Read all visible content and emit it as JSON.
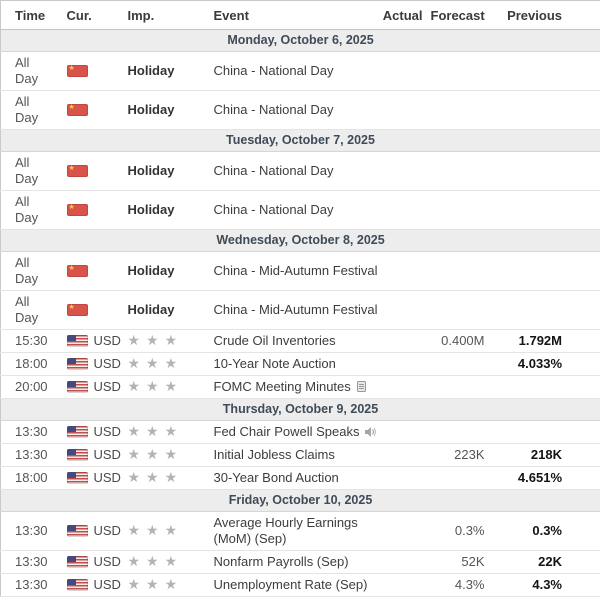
{
  "colors": {
    "day_header_bg": "#ededed",
    "day_header_text": "#3f4b57",
    "row_border": "#e4e4e4",
    "star_color": "#b3b3b3",
    "flag_cn_red": "#d9534a",
    "flag_us_blue": "#454a7d"
  },
  "table": {
    "columns": [
      {
        "key": "time",
        "label": "Time"
      },
      {
        "key": "cur",
        "label": "Cur."
      },
      {
        "key": "imp",
        "label": "Imp."
      },
      {
        "key": "event",
        "label": "Event"
      },
      {
        "key": "actual",
        "label": "Actual"
      },
      {
        "key": "forecast",
        "label": "Forecast"
      },
      {
        "key": "previous",
        "label": "Previous"
      }
    ],
    "sections": [
      {
        "date": "Monday, October 6, 2025",
        "rows": [
          {
            "time": "All Day",
            "flag": "cn",
            "currency": "",
            "importance_label": "Holiday",
            "stars": 0,
            "event": "China - National Day",
            "event_icon": null,
            "actual": "",
            "forecast": "",
            "previous": ""
          },
          {
            "time": "All Day",
            "flag": "cn",
            "currency": "",
            "importance_label": "Holiday",
            "stars": 0,
            "event": "China - National Day",
            "event_icon": null,
            "actual": "",
            "forecast": "",
            "previous": ""
          }
        ]
      },
      {
        "date": "Tuesday, October 7, 2025",
        "rows": [
          {
            "time": "All Day",
            "flag": "cn",
            "currency": "",
            "importance_label": "Holiday",
            "stars": 0,
            "event": "China - National Day",
            "event_icon": null,
            "actual": "",
            "forecast": "",
            "previous": ""
          },
          {
            "time": "All Day",
            "flag": "cn",
            "currency": "",
            "importance_label": "Holiday",
            "stars": 0,
            "event": "China - National Day",
            "event_icon": null,
            "actual": "",
            "forecast": "",
            "previous": ""
          }
        ]
      },
      {
        "date": "Wednesday, October 8, 2025",
        "rows": [
          {
            "time": "All Day",
            "flag": "cn",
            "currency": "",
            "importance_label": "Holiday",
            "stars": 0,
            "event": "China - Mid-Autumn Festival",
            "event_icon": null,
            "actual": "",
            "forecast": "",
            "previous": ""
          },
          {
            "time": "All Day",
            "flag": "cn",
            "currency": "",
            "importance_label": "Holiday",
            "stars": 0,
            "event": "China - Mid-Autumn Festival",
            "event_icon": null,
            "actual": "",
            "forecast": "",
            "previous": ""
          },
          {
            "time": "15:30",
            "flag": "us",
            "currency": "USD",
            "importance_label": "",
            "stars": 3,
            "event": "Crude Oil Inventories",
            "event_icon": null,
            "actual": "",
            "forecast": "0.400M",
            "previous": "1.792M"
          },
          {
            "time": "18:00",
            "flag": "us",
            "currency": "USD",
            "importance_label": "",
            "stars": 3,
            "event": "10-Year Note Auction",
            "event_icon": null,
            "actual": "",
            "forecast": "",
            "previous": "4.033%"
          },
          {
            "time": "20:00",
            "flag": "us",
            "currency": "USD",
            "importance_label": "",
            "stars": 3,
            "event": "FOMC Meeting Minutes",
            "event_icon": "report",
            "actual": "",
            "forecast": "",
            "previous": ""
          }
        ]
      },
      {
        "date": "Thursday, October 9, 2025",
        "rows": [
          {
            "time": "13:30",
            "flag": "us",
            "currency": "USD",
            "importance_label": "",
            "stars": 3,
            "event": "Fed Chair Powell Speaks",
            "event_icon": "speech",
            "actual": "",
            "forecast": "",
            "previous": ""
          },
          {
            "time": "13:30",
            "flag": "us",
            "currency": "USD",
            "importance_label": "",
            "stars": 3,
            "event": "Initial Jobless Claims",
            "event_icon": null,
            "actual": "",
            "forecast": "223K",
            "previous": "218K"
          },
          {
            "time": "18:00",
            "flag": "us",
            "currency": "USD",
            "importance_label": "",
            "stars": 3,
            "event": "30-Year Bond Auction",
            "event_icon": null,
            "actual": "",
            "forecast": "",
            "previous": "4.651%"
          }
        ]
      },
      {
        "date": "Friday, October 10, 2025",
        "rows": [
          {
            "time": "13:30",
            "flag": "us",
            "currency": "USD",
            "importance_label": "",
            "stars": 3,
            "event": "Average Hourly Earnings (MoM) (Sep)",
            "event_icon": null,
            "actual": "",
            "forecast": "0.3%",
            "previous": "0.3%"
          },
          {
            "time": "13:30",
            "flag": "us",
            "currency": "USD",
            "importance_label": "",
            "stars": 3,
            "event": "Nonfarm Payrolls (Sep)",
            "event_icon": null,
            "actual": "",
            "forecast": "52K",
            "previous": "22K"
          },
          {
            "time": "13:30",
            "flag": "us",
            "currency": "USD",
            "importance_label": "",
            "stars": 3,
            "event": "Unemployment Rate (Sep)",
            "event_icon": null,
            "actual": "",
            "forecast": "4.3%",
            "previous": "4.3%"
          }
        ]
      }
    ]
  }
}
